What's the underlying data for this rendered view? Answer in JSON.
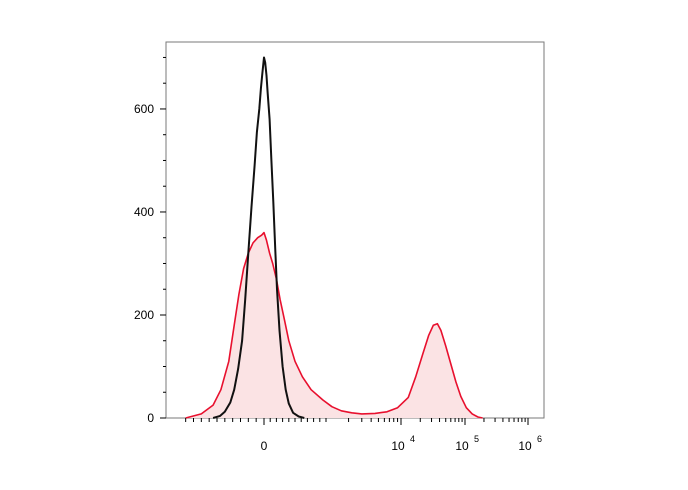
{
  "chart_data": {
    "type": "area",
    "title": "",
    "xlabel": "",
    "ylabel": "",
    "x_scale": "biexponential",
    "ylim": [
      0,
      730
    ],
    "xlim": [
      -1200,
      1000000
    ],
    "grid": false,
    "legend": "none",
    "y_ticks": [
      {
        "value": 0,
        "label": "0"
      },
      {
        "value": 200,
        "label": "200"
      },
      {
        "value": 400,
        "label": "400"
      },
      {
        "value": 600,
        "label": "600"
      }
    ],
    "x_ticks": [
      {
        "value": 0,
        "base": "0",
        "exp": ""
      },
      {
        "value": 10000,
        "base": "10",
        "exp": "4"
      },
      {
        "value": 100000,
        "base": "10",
        "exp": "5"
      },
      {
        "value": 1000000,
        "base": "10",
        "exp": "6"
      }
    ],
    "series": [
      {
        "color": "#111111",
        "filled": false,
        "points": [
          [
            -650,
            0
          ],
          [
            -560,
            4
          ],
          [
            -500,
            12
          ],
          [
            -430,
            30
          ],
          [
            -380,
            55
          ],
          [
            -330,
            95
          ],
          [
            -280,
            150
          ],
          [
            -240,
            230
          ],
          [
            -200,
            320
          ],
          [
            -160,
            410
          ],
          [
            -120,
            490
          ],
          [
            -90,
            555
          ],
          [
            -60,
            600
          ],
          [
            -40,
            640
          ],
          [
            -20,
            670
          ],
          [
            0,
            700
          ],
          [
            20,
            690
          ],
          [
            40,
            665
          ],
          [
            60,
            630
          ],
          [
            90,
            580
          ],
          [
            120,
            500
          ],
          [
            150,
            420
          ],
          [
            180,
            330
          ],
          [
            210,
            250
          ],
          [
            250,
            170
          ],
          [
            300,
            100
          ],
          [
            350,
            55
          ],
          [
            400,
            28
          ],
          [
            470,
            10
          ],
          [
            560,
            3
          ],
          [
            650,
            0
          ]
        ]
      },
      {
        "color": "#e8102e",
        "fill": "#fbe3e4",
        "filled": true,
        "points": [
          [
            -1000,
            0
          ],
          [
            -800,
            8
          ],
          [
            -650,
            25
          ],
          [
            -550,
            55
          ],
          [
            -450,
            110
          ],
          [
            -380,
            180
          ],
          [
            -320,
            240
          ],
          [
            -260,
            290
          ],
          [
            -200,
            320
          ],
          [
            -140,
            340
          ],
          [
            -80,
            350
          ],
          [
            -30,
            355
          ],
          [
            0,
            360
          ],
          [
            40,
            345
          ],
          [
            90,
            320
          ],
          [
            140,
            300
          ],
          [
            200,
            270
          ],
          [
            260,
            230
          ],
          [
            330,
            190
          ],
          [
            400,
            150
          ],
          [
            500,
            110
          ],
          [
            620,
            80
          ],
          [
            760,
            55
          ],
          [
            950,
            35
          ],
          [
            1200,
            22
          ],
          [
            1600,
            14
          ],
          [
            2200,
            10
          ],
          [
            3000,
            8
          ],
          [
            4500,
            9
          ],
          [
            6500,
            12
          ],
          [
            9000,
            20
          ],
          [
            13000,
            40
          ],
          [
            17000,
            80
          ],
          [
            22000,
            125
          ],
          [
            27000,
            160
          ],
          [
            32000,
            180
          ],
          [
            37000,
            183
          ],
          [
            42000,
            170
          ],
          [
            50000,
            140
          ],
          [
            60000,
            105
          ],
          [
            72000,
            70
          ],
          [
            86000,
            42
          ],
          [
            105000,
            20
          ],
          [
            130000,
            8
          ],
          [
            160000,
            2
          ],
          [
            190000,
            0
          ]
        ]
      }
    ]
  }
}
